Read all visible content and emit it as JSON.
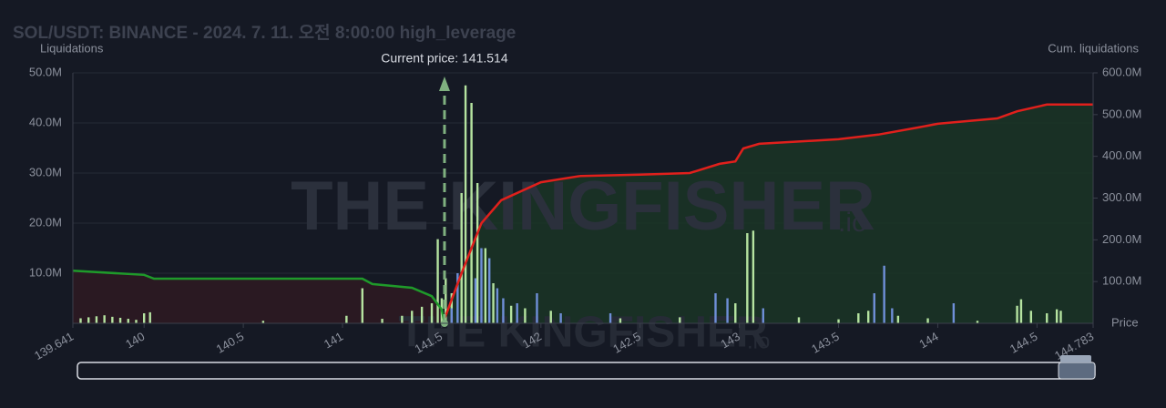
{
  "chart_data": {
    "type": "bar",
    "title": "SOL/USDT: BINANCE - 2024. 7. 11. 오전 8:00:00 high_leverage",
    "y_label": "Liquidations",
    "y2_label": "Cum. liquidations",
    "x_label": "Price",
    "watermark": {
      "text": "THE KINGFISHER",
      "suffix": ".io"
    },
    "annotation": {
      "text": "Current price: 141.514",
      "x": 141.514,
      "color": "#7fb07f"
    },
    "xlim": [
      139.641,
      144.783
    ],
    "xticks": [
      139.641,
      140,
      140.5,
      141,
      141.5,
      142,
      142.5,
      143,
      143.5,
      144,
      144.5,
      144.783
    ],
    "ylim": [
      0,
      50
    ],
    "yticks": [
      {
        "value": 10,
        "label": "10.0M"
      },
      {
        "value": 20,
        "label": "20.0M"
      },
      {
        "value": 30,
        "label": "30.0M"
      },
      {
        "value": 40,
        "label": "40.0M"
      },
      {
        "value": 50,
        "label": "50.0M"
      }
    ],
    "y2lim": [
      0,
      600
    ],
    "y2ticks": [
      {
        "value": 100,
        "label": "100.0M"
      },
      {
        "value": 200,
        "label": "200.0M"
      },
      {
        "value": 300,
        "label": "300.0M"
      },
      {
        "value": 400,
        "label": "400.0M"
      },
      {
        "value": 500,
        "label": "500.0M"
      },
      {
        "value": 600,
        "label": "600.0M"
      }
    ],
    "grid": true,
    "series": [
      {
        "type": "bar",
        "color": "#b5e3a0",
        "x": [
          139.68,
          139.72,
          139.76,
          139.8,
          139.84,
          139.88,
          139.92,
          139.96,
          140.0,
          140.03,
          140.6,
          141.02,
          141.1,
          141.2,
          141.3,
          141.35,
          141.4,
          141.45,
          141.48,
          141.5,
          141.52,
          141.55,
          141.6,
          141.62,
          141.65,
          141.68,
          141.72,
          141.76,
          141.85,
          141.92,
          142.05,
          142.4,
          142.7,
          142.98,
          143.04,
          143.07,
          143.3,
          143.5,
          143.6,
          143.65,
          143.8,
          143.95,
          144.2,
          144.4,
          144.42,
          144.47,
          144.55,
          144.6,
          144.62
        ],
        "values": [
          1.0,
          1.2,
          1.4,
          1.6,
          1.3,
          1.1,
          0.9,
          0.7,
          2.0,
          2.2,
          0.5,
          1.5,
          7.0,
          0.9,
          1.5,
          2.5,
          3.3,
          4.0,
          16.8,
          5.0,
          9.0,
          6.0,
          26.0,
          47.5,
          44.0,
          28.0,
          15.0,
          8.0,
          3.5,
          3.0,
          2.5,
          1.0,
          1.2,
          4.0,
          18.0,
          18.5,
          1.2,
          0.8,
          2.0,
          2.5,
          1.5,
          1.0,
          0.5,
          3.5,
          4.8,
          2.5,
          2.0,
          2.8,
          2.5
        ]
      },
      {
        "type": "bar",
        "color": "#6f8fd8",
        "x": [
          141.55,
          141.58,
          141.67,
          141.7,
          141.74,
          141.78,
          141.81,
          141.88,
          141.98,
          142.1,
          142.35,
          142.88,
          142.94,
          143.12,
          143.68,
          143.73,
          143.77,
          144.08
        ],
        "values": [
          3,
          10,
          9,
          15,
          13,
          7,
          5,
          4,
          6,
          2,
          2,
          6,
          5,
          3,
          6,
          11.5,
          3,
          4
        ]
      },
      {
        "type": "line",
        "axis": "y2",
        "color": "#e0201c",
        "fill": "#1a3526",
        "x": [
          141.514,
          141.6,
          141.7,
          141.8,
          142.0,
          142.2,
          142.5,
          142.75,
          142.9,
          142.98,
          143.02,
          143.1,
          143.5,
          143.7,
          143.9,
          144.0,
          144.3,
          144.4,
          144.55,
          144.783
        ],
        "values": [
          11,
          120,
          240,
          295,
          338,
          353,
          356,
          360,
          382,
          388,
          419,
          430,
          441,
          452,
          469,
          478,
          491,
          508,
          524,
          524
        ]
      },
      {
        "type": "line",
        "axis": "y2",
        "color": "#1f9a2a",
        "fill": "#2e1a22",
        "x": [
          139.641,
          140.0,
          140.05,
          141.1,
          141.15,
          141.35,
          141.45,
          141.5,
          141.514
        ],
        "values": [
          126,
          116,
          107,
          107,
          94,
          85,
          65,
          33,
          0
        ]
      }
    ]
  }
}
